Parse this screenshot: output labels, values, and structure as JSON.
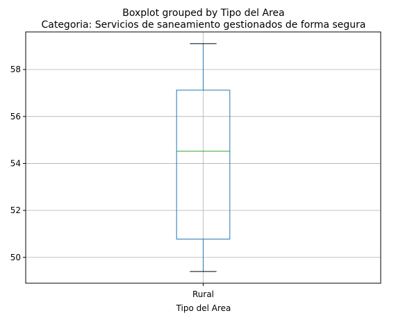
{
  "chart_data": {
    "type": "boxplot",
    "title": "Boxplot grouped by Tipo del Area",
    "subtitle": "Categoria: Servicios de saneamiento gestionados de forma segura",
    "xlabel": "Tipo del Area",
    "ylabel": "",
    "categories": [
      "Rural"
    ],
    "boxes": [
      {
        "category": "Rural",
        "whisker_low": 49.4,
        "q1": 50.78,
        "median": 54.52,
        "q3": 57.12,
        "whisker_high": 59.1
      }
    ],
    "ylim": [
      48.9,
      59.6
    ],
    "yticks": [
      50,
      52,
      54,
      56,
      58
    ],
    "grid": true,
    "colors": {
      "box": "#1f77b4",
      "median": "#2ca02c",
      "whisker_cap": "#000000",
      "grid": "#b0b0b0"
    }
  }
}
